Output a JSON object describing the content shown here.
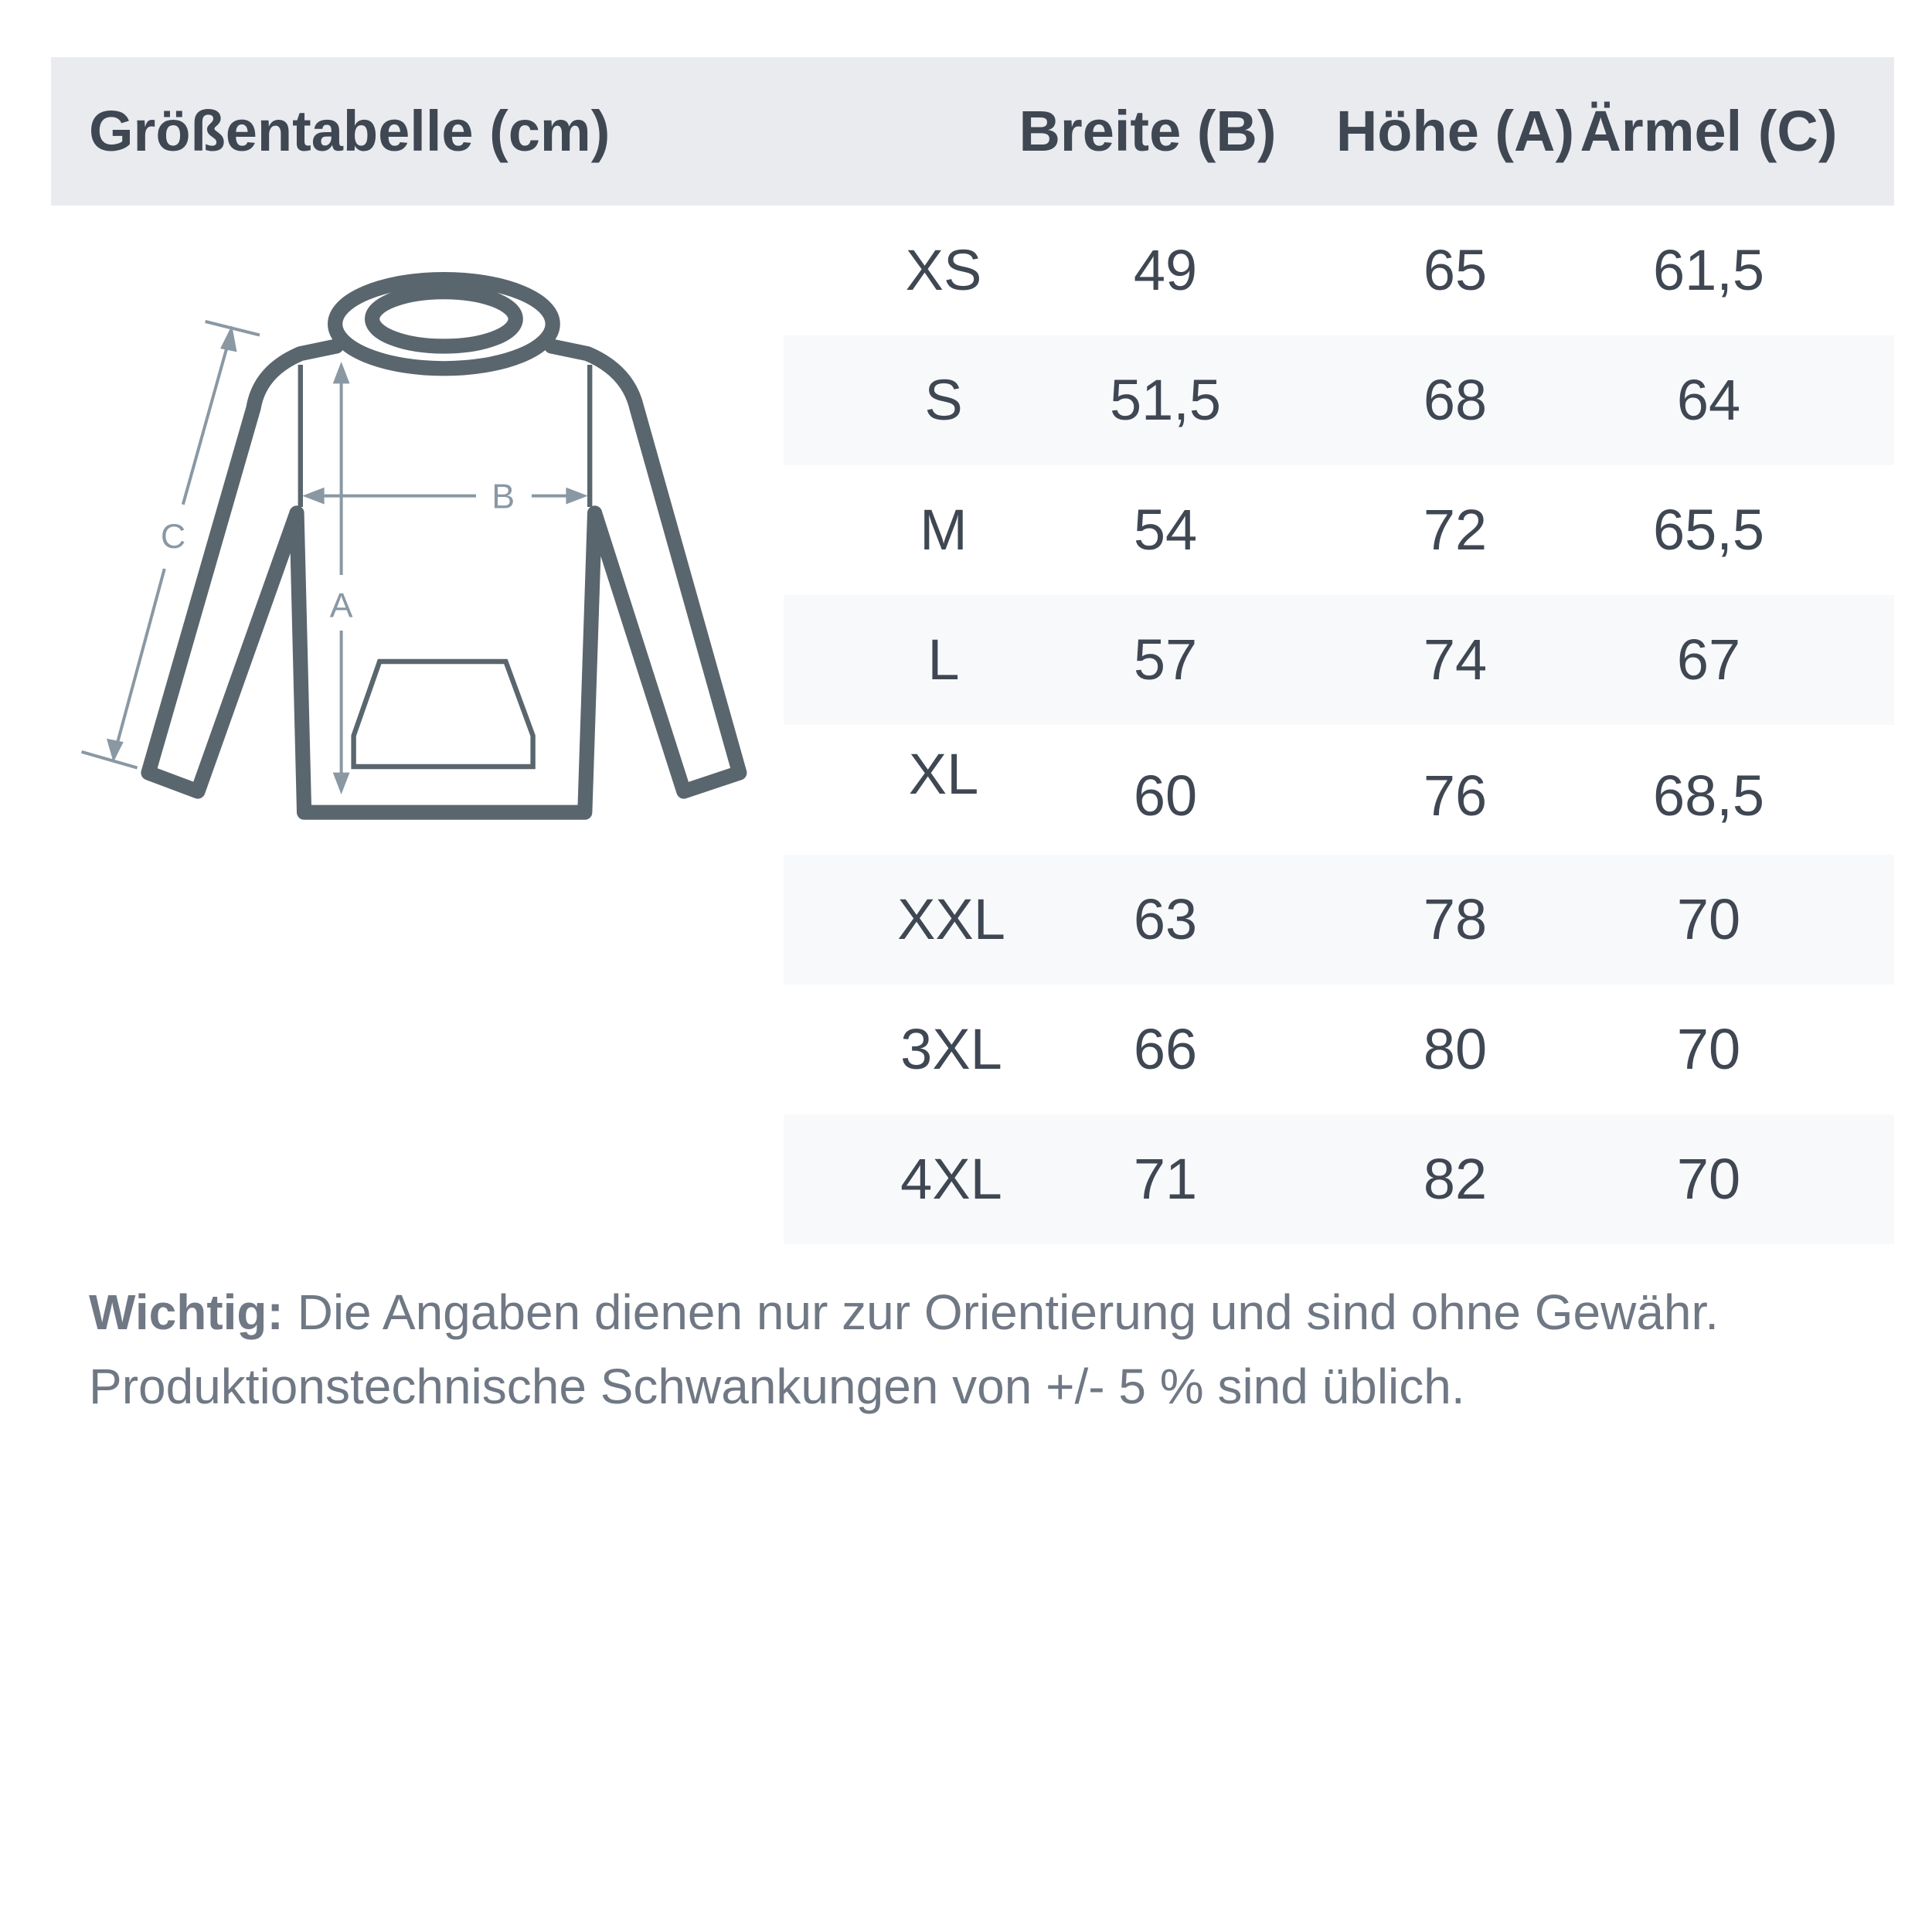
{
  "header": {
    "title": "Größentabelle (cm)",
    "columns": [
      "Breite (B)",
      "Höhe (A)",
      "Ärmel (C)"
    ]
  },
  "diagram": {
    "labels": {
      "a": "A",
      "b": "B",
      "c": "C"
    },
    "colors": {
      "outline": "#5a666e",
      "measure": "#8a98a3"
    }
  },
  "table": {
    "rows": [
      {
        "size": "XS",
        "breite": "49",
        "hoehe": "65",
        "aermel": "61,5"
      },
      {
        "size": "S",
        "breite": "51,5",
        "hoehe": "68",
        "aermel": "64"
      },
      {
        "size": "M",
        "breite": "54",
        "hoehe": "72",
        "aermel": "65,5"
      },
      {
        "size": "L",
        "breite": "57",
        "hoehe": "74",
        "aermel": "67"
      },
      {
        "size": "XL",
        "breite": "60",
        "hoehe": "76",
        "aermel": "68,5"
      },
      {
        "size": "XXL",
        "breite": "63",
        "hoehe": "78",
        "aermel": "70"
      },
      {
        "size": "3XL",
        "breite": "66",
        "hoehe": "80",
        "aermel": "70"
      },
      {
        "size": "4XL",
        "breite": "71",
        "hoehe": "82",
        "aermel": "70"
      }
    ]
  },
  "note": {
    "label": "Wichtig:",
    "line1": " Die Angaben dienen nur zur Orientierung und sind ohne Gewähr.",
    "line2": "Produktionstechnische Schwankungen von +/- 5 % sind üblich."
  }
}
